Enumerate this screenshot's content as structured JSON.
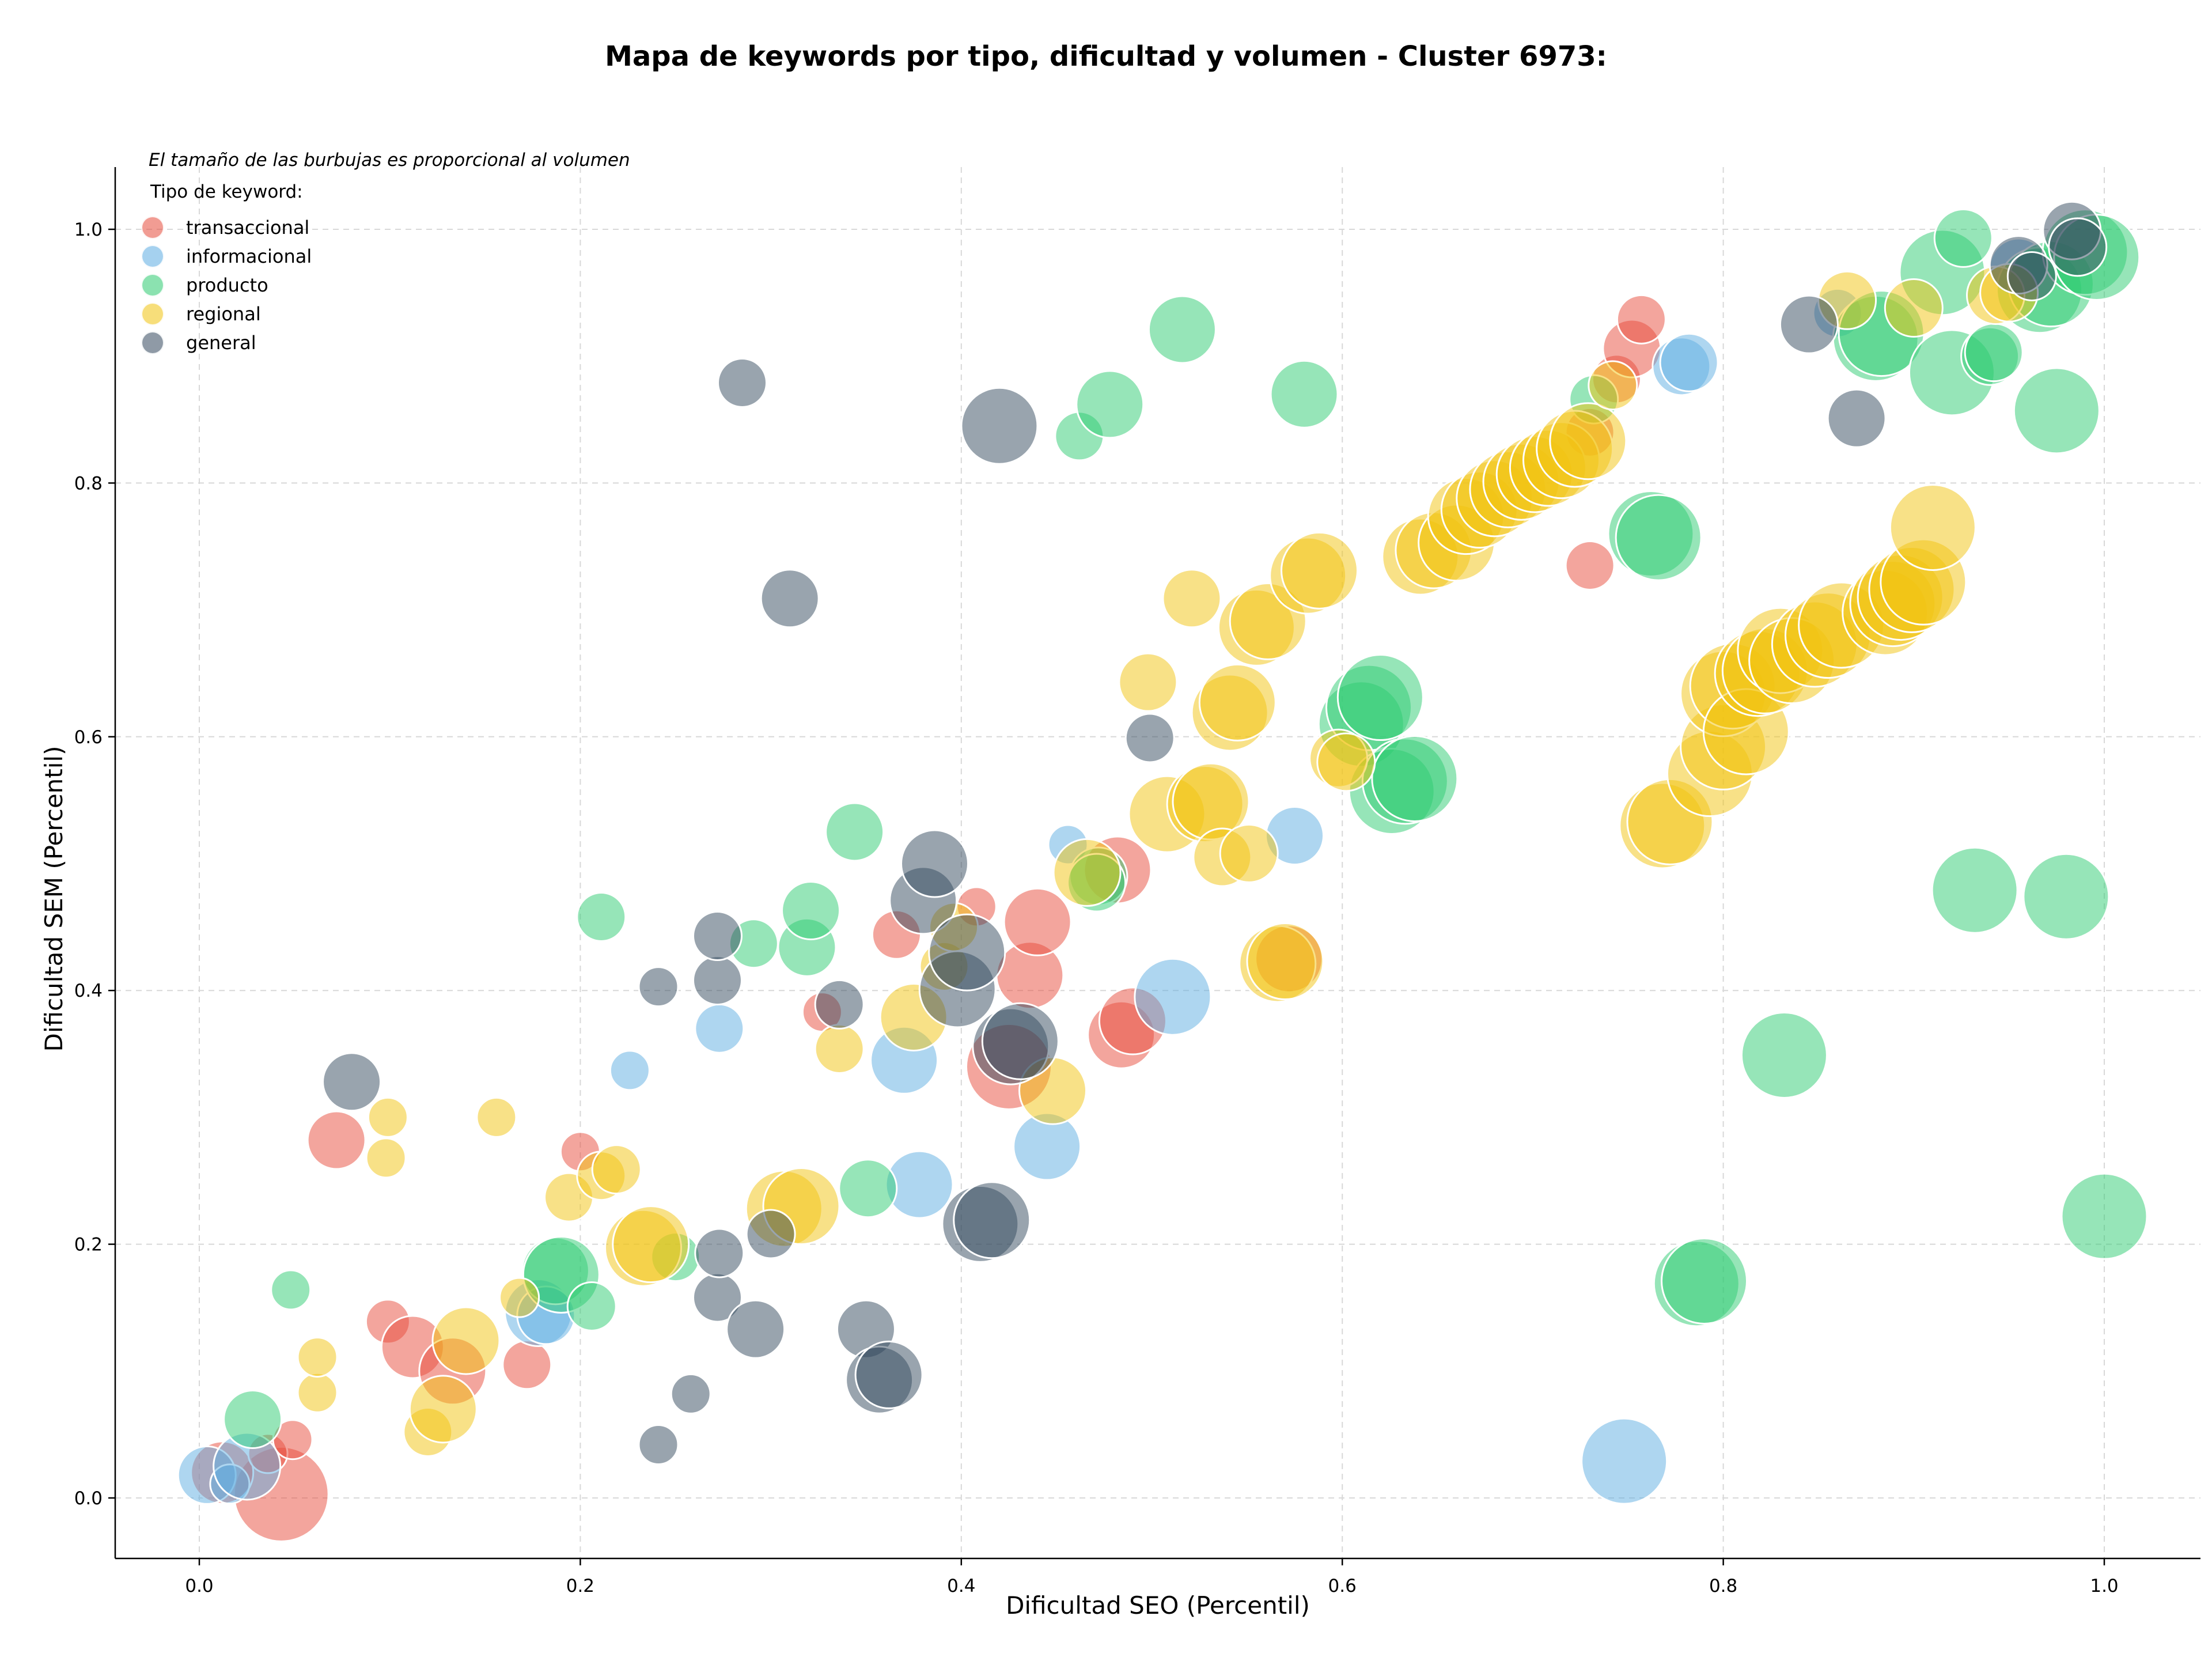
{
  "chart_data": {
    "type": "scatter",
    "title": "Mapa de keywords por tipo, dificultad y volumen - Cluster 6973:",
    "xlabel": "Dificultad SEO (Percentil)",
    "ylabel": "Dificultad SEM (Percentil)",
    "xlim": [
      -0.045,
      1.05
    ],
    "ylim": [
      -0.045,
      1.05
    ],
    "xticks": [
      0.0,
      0.2,
      0.4,
      0.6,
      0.8,
      1.0
    ],
    "yticks": [
      0.0,
      0.2,
      0.4,
      0.6,
      0.8,
      1.0
    ],
    "xtick_labels": [
      "0.0",
      "0.2",
      "0.4",
      "0.6",
      "0.8",
      "1.0"
    ],
    "ytick_labels": [
      "0.0",
      "0.2",
      "0.4",
      "0.6",
      "0.8",
      "1.0"
    ],
    "grid": true,
    "note": "El tamaño de las burbujas es proporcional al volumen",
    "legend_title": "Tipo de keyword:",
    "legend_position": "top-left",
    "size_encoding": "volumen (relative 0-1)",
    "series": [
      {
        "name": "transaccional",
        "color": "#e74c3c",
        "points": [
          [
            0.043,
            0.003,
            0.8
          ],
          [
            0.012,
            0.02,
            0.45
          ],
          [
            0.036,
            0.035,
            0.2
          ],
          [
            0.049,
            0.046,
            0.2
          ],
          [
            0.072,
            0.282,
            0.4
          ],
          [
            0.099,
            0.139,
            0.25
          ],
          [
            0.112,
            0.119,
            0.45
          ],
          [
            0.133,
            0.1,
            0.5
          ],
          [
            0.172,
            0.105,
            0.3
          ],
          [
            0.2,
            0.273,
            0.2
          ],
          [
            0.327,
            0.383,
            0.2
          ],
          [
            0.366,
            0.444,
            0.3
          ],
          [
            0.408,
            0.466,
            0.2
          ],
          [
            0.425,
            0.34,
            0.7
          ],
          [
            0.436,
            0.412,
            0.5
          ],
          [
            0.44,
            0.454,
            0.5
          ],
          [
            0.484,
            0.365,
            0.5
          ],
          [
            0.49,
            0.376,
            0.5
          ],
          [
            0.482,
            0.495,
            0.5
          ],
          [
            0.572,
            0.425,
            0.5
          ],
          [
            0.73,
            0.735,
            0.3
          ],
          [
            0.73,
            0.84,
            0.3
          ],
          [
            0.744,
            0.882,
            0.3
          ],
          [
            0.752,
            0.906,
            0.4
          ],
          [
            0.757,
            0.929,
            0.3
          ]
        ]
      },
      {
        "name": "informacional",
        "color": "#5dade2",
        "points": [
          [
            0.004,
            0.018,
            0.4
          ],
          [
            0.016,
            0.011,
            0.2
          ],
          [
            0.025,
            0.025,
            0.5
          ],
          [
            0.178,
            0.146,
            0.5
          ],
          [
            0.182,
            0.144,
            0.4
          ],
          [
            0.226,
            0.337,
            0.2
          ],
          [
            0.273,
            0.37,
            0.3
          ],
          [
            0.37,
            0.345,
            0.5
          ],
          [
            0.378,
            0.247,
            0.5
          ],
          [
            0.445,
            0.277,
            0.5
          ],
          [
            0.456,
            0.515,
            0.2
          ],
          [
            0.511,
            0.395,
            0.6
          ],
          [
            0.575,
            0.522,
            0.4
          ],
          [
            0.748,
            0.029,
            0.7
          ],
          [
            0.778,
            0.892,
            0.4
          ],
          [
            0.782,
            0.895,
            0.4
          ],
          [
            0.86,
            0.934,
            0.3
          ],
          [
            0.955,
            0.97,
            0.4
          ]
        ]
      },
      {
        "name": "producto",
        "color": "#2ecc71",
        "points": [
          [
            0.028,
            0.062,
            0.4
          ],
          [
            0.048,
            0.164,
            0.2
          ],
          [
            0.187,
            0.179,
            0.5
          ],
          [
            0.19,
            0.176,
            0.6
          ],
          [
            0.206,
            0.151,
            0.3
          ],
          [
            0.211,
            0.458,
            0.3
          ],
          [
            0.25,
            0.19,
            0.3
          ],
          [
            0.291,
            0.437,
            0.3
          ],
          [
            0.319,
            0.434,
            0.4
          ],
          [
            0.321,
            0.463,
            0.4
          ],
          [
            0.344,
            0.525,
            0.4
          ],
          [
            0.351,
            0.244,
            0.4
          ],
          [
            0.462,
            0.837,
            0.3
          ],
          [
            0.472,
            0.49,
            0.4
          ],
          [
            0.471,
            0.485,
            0.4
          ],
          [
            0.478,
            0.862,
            0.5
          ],
          [
            0.516,
            0.921,
            0.5
          ],
          [
            0.58,
            0.87,
            0.5
          ],
          [
            0.61,
            0.61,
            0.7
          ],
          [
            0.614,
            0.623,
            0.7
          ],
          [
            0.62,
            0.631,
            0.7
          ],
          [
            0.626,
            0.557,
            0.7
          ],
          [
            0.633,
            0.565,
            0.7
          ],
          [
            0.638,
            0.567,
            0.7
          ],
          [
            0.732,
            0.866,
            0.3
          ],
          [
            0.762,
            0.76,
            0.7
          ],
          [
            0.766,
            0.757,
            0.7
          ],
          [
            0.786,
            0.169,
            0.7
          ],
          [
            0.79,
            0.171,
            0.7
          ],
          [
            0.832,
            0.349,
            0.7
          ],
          [
            0.88,
            0.914,
            0.7
          ],
          [
            0.883,
            0.918,
            0.7
          ],
          [
            0.915,
            0.966,
            0.7
          ],
          [
            0.92,
            0.887,
            0.7
          ],
          [
            0.926,
            0.993,
            0.4
          ],
          [
            0.932,
            0.479,
            0.7
          ],
          [
            0.94,
            0.9,
            0.4
          ],
          [
            0.942,
            0.903,
            0.4
          ],
          [
            0.966,
            0.952,
            0.7
          ],
          [
            0.972,
            0.957,
            0.7
          ],
          [
            0.975,
            0.857,
            0.7
          ],
          [
            0.98,
            0.474,
            0.7
          ],
          [
            0.99,
            0.982,
            0.7
          ],
          [
            0.996,
            0.978,
            0.7
          ],
          [
            1.0,
            0.222,
            0.7
          ]
        ]
      },
      {
        "name": "regional",
        "color": "#f1c40f",
        "points": [
          [
            0.062,
            0.083,
            0.2
          ],
          [
            0.062,
            0.111,
            0.2
          ],
          [
            0.098,
            0.268,
            0.2
          ],
          [
            0.099,
            0.3,
            0.2
          ],
          [
            0.12,
            0.052,
            0.3
          ],
          [
            0.128,
            0.07,
            0.5
          ],
          [
            0.14,
            0.124,
            0.5
          ],
          [
            0.156,
            0.3,
            0.2
          ],
          [
            0.168,
            0.158,
            0.2
          ],
          [
            0.194,
            0.237,
            0.3
          ],
          [
            0.211,
            0.254,
            0.3
          ],
          [
            0.219,
            0.259,
            0.3
          ],
          [
            0.233,
            0.197,
            0.6
          ],
          [
            0.237,
            0.2,
            0.6
          ],
          [
            0.307,
            0.228,
            0.6
          ],
          [
            0.316,
            0.23,
            0.6
          ],
          [
            0.336,
            0.354,
            0.3
          ],
          [
            0.375,
            0.379,
            0.5
          ],
          [
            0.391,
            0.419,
            0.3
          ],
          [
            0.396,
            0.45,
            0.3
          ],
          [
            0.448,
            0.321,
            0.5
          ],
          [
            0.466,
            0.493,
            0.5
          ],
          [
            0.498,
            0.643,
            0.4
          ],
          [
            0.508,
            0.539,
            0.6
          ],
          [
            0.521,
            0.709,
            0.4
          ],
          [
            0.528,
            0.547,
            0.6
          ],
          [
            0.531,
            0.549,
            0.6
          ],
          [
            0.537,
            0.505,
            0.4
          ],
          [
            0.541,
            0.619,
            0.6
          ],
          [
            0.545,
            0.627,
            0.6
          ],
          [
            0.551,
            0.508,
            0.4
          ],
          [
            0.555,
            0.686,
            0.6
          ],
          [
            0.561,
            0.691,
            0.6
          ],
          [
            0.566,
            0.421,
            0.6
          ],
          [
            0.57,
            0.423,
            0.6
          ],
          [
            0.582,
            0.727,
            0.6
          ],
          [
            0.588,
            0.731,
            0.6
          ],
          [
            0.598,
            0.583,
            0.4
          ],
          [
            0.602,
            0.58,
            0.4
          ],
          [
            0.641,
            0.742,
            0.6
          ],
          [
            0.648,
            0.747,
            0.6
          ],
          [
            0.66,
            0.753,
            0.6
          ],
          [
            0.665,
            0.774,
            0.6
          ],
          [
            0.672,
            0.779,
            0.6
          ],
          [
            0.68,
            0.788,
            0.6
          ],
          [
            0.687,
            0.795,
            0.6
          ],
          [
            0.694,
            0.801,
            0.6
          ],
          [
            0.701,
            0.807,
            0.6
          ],
          [
            0.708,
            0.812,
            0.6
          ],
          [
            0.715,
            0.818,
            0.6
          ],
          [
            0.722,
            0.827,
            0.6
          ],
          [
            0.729,
            0.833,
            0.6
          ],
          [
            0.742,
            0.877,
            0.3
          ],
          [
            0.768,
            0.53,
            0.7
          ],
          [
            0.772,
            0.533,
            0.7
          ],
          [
            0.793,
            0.571,
            0.7
          ],
          [
            0.8,
            0.592,
            0.7
          ],
          [
            0.8,
            0.634,
            0.7
          ],
          [
            0.805,
            0.64,
            0.7
          ],
          [
            0.812,
            0.604,
            0.7
          ],
          [
            0.818,
            0.65,
            0.7
          ],
          [
            0.822,
            0.652,
            0.7
          ],
          [
            0.83,
            0.668,
            0.7
          ],
          [
            0.836,
            0.66,
            0.7
          ],
          [
            0.848,
            0.673,
            0.7
          ],
          [
            0.855,
            0.68,
            0.7
          ],
          [
            0.862,
            0.688,
            0.7
          ],
          [
            0.865,
            0.944,
            0.4
          ],
          [
            0.885,
            0.698,
            0.7
          ],
          [
            0.889,
            0.705,
            0.7
          ],
          [
            0.893,
            0.71,
            0.7
          ],
          [
            0.899,
            0.716,
            0.7
          ],
          [
            0.905,
            0.722,
            0.7
          ],
          [
            0.91,
            0.765,
            0.7
          ],
          [
            0.9,
            0.938,
            0.4
          ],
          [
            0.943,
            0.948,
            0.4
          ],
          [
            0.95,
            0.95,
            0.4
          ]
        ]
      },
      {
        "name": "general",
        "color": "#34495e",
        "points": [
          [
            0.08,
            0.328,
            0.4
          ],
          [
            0.241,
            0.042,
            0.2
          ],
          [
            0.241,
            0.403,
            0.2
          ],
          [
            0.258,
            0.082,
            0.2
          ],
          [
            0.272,
            0.158,
            0.3
          ],
          [
            0.273,
            0.193,
            0.3
          ],
          [
            0.272,
            0.408,
            0.3
          ],
          [
            0.272,
            0.443,
            0.3
          ],
          [
            0.285,
            0.879,
            0.3
          ],
          [
            0.292,
            0.133,
            0.4
          ],
          [
            0.3,
            0.208,
            0.3
          ],
          [
            0.31,
            0.709,
            0.4
          ],
          [
            0.336,
            0.389,
            0.3
          ],
          [
            0.35,
            0.133,
            0.4
          ],
          [
            0.357,
            0.093,
            0.5
          ],
          [
            0.362,
            0.097,
            0.5
          ],
          [
            0.38,
            0.471,
            0.5
          ],
          [
            0.386,
            0.5,
            0.5
          ],
          [
            0.398,
            0.401,
            0.6
          ],
          [
            0.403,
            0.43,
            0.6
          ],
          [
            0.41,
            0.216,
            0.6
          ],
          [
            0.416,
            0.219,
            0.6
          ],
          [
            0.42,
            0.845,
            0.6
          ],
          [
            0.426,
            0.356,
            0.6
          ],
          [
            0.431,
            0.36,
            0.6
          ],
          [
            0.499,
            0.599,
            0.3
          ],
          [
            0.845,
            0.925,
            0.4
          ],
          [
            0.87,
            0.851,
            0.4
          ],
          [
            0.955,
            0.972,
            0.4
          ],
          [
            0.962,
            0.963,
            0.3
          ],
          [
            0.983,
            0.999,
            0.4
          ],
          [
            0.986,
            0.986,
            0.4
          ]
        ]
      }
    ]
  }
}
